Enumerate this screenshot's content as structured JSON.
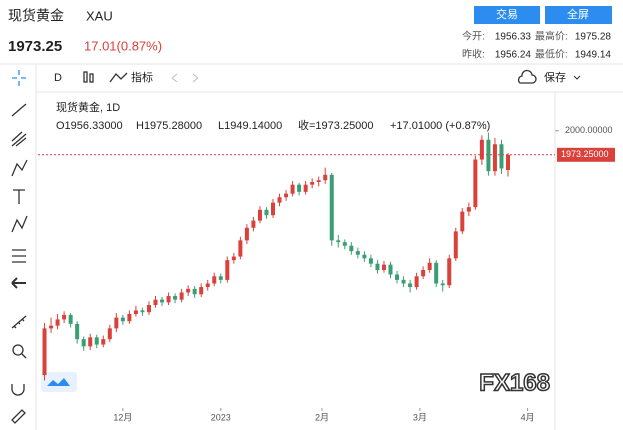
{
  "header": {
    "title": "现货黄金",
    "symbol": "XAU",
    "price": "1973.25",
    "change": "17.01(0.87%)",
    "buttons": [
      "交易",
      "全屏"
    ],
    "stats": [
      [
        "今开:",
        "1956.33",
        "最高价:",
        "1975.28"
      ],
      [
        "昨收:",
        "1956.24",
        "最低价:",
        "1949.14"
      ]
    ]
  },
  "toolbar": {
    "interval": "D",
    "indicators": "指标",
    "save": "保存"
  },
  "legend": {
    "name": "现货黄金, 1D",
    "open": "O1956.33000",
    "high": "H1975.28000",
    "low": "L1949.14000",
    "close": "收=1973.25000",
    "change": "+17.01000 (+0.87%)"
  },
  "watermark": "FX168",
  "chart_data": {
    "type": "candlestick",
    "up_color": "#d9413a",
    "down_color": "#3a9e74",
    "price_line_color": "#d9413a",
    "ylim": [
      1678,
      2012
    ],
    "yticks": [
      {
        "value": 2000,
        "label": "2000.00000"
      }
    ],
    "last_price": {
      "value": 1973.25,
      "label": "1973.25000"
    },
    "xlim": [
      -1,
      78.2
    ],
    "xticks": [
      {
        "value": 12,
        "label": "12月"
      },
      {
        "value": 27,
        "label": "2023"
      },
      {
        "value": 42.5,
        "label": "2月"
      },
      {
        "value": 57.5,
        "label": "3月"
      },
      {
        "value": 74,
        "label": "4月"
      }
    ],
    "ohlc": [
      [
        1728,
        1786,
        1722,
        1780
      ],
      [
        1780,
        1792,
        1775,
        1783
      ],
      [
        1783,
        1796,
        1779,
        1790
      ],
      [
        1790,
        1799,
        1786,
        1795
      ],
      [
        1795,
        1797,
        1781,
        1785
      ],
      [
        1785,
        1788,
        1763,
        1768
      ],
      [
        1768,
        1771,
        1755,
        1760
      ],
      [
        1760,
        1774,
        1756,
        1770
      ],
      [
        1770,
        1773,
        1758,
        1762
      ],
      [
        1762,
        1772,
        1759,
        1768
      ],
      [
        1768,
        1784,
        1765,
        1780
      ],
      [
        1780,
        1797,
        1776,
        1792
      ],
      [
        1792,
        1795,
        1784,
        1788
      ],
      [
        1788,
        1800,
        1785,
        1796
      ],
      [
        1796,
        1805,
        1793,
        1800
      ],
      [
        1800,
        1803,
        1794,
        1798
      ],
      [
        1798,
        1810,
        1795,
        1806
      ],
      [
        1806,
        1816,
        1803,
        1812
      ],
      [
        1812,
        1815,
        1805,
        1809
      ],
      [
        1809,
        1820,
        1806,
        1816
      ],
      [
        1816,
        1819,
        1808,
        1812
      ],
      [
        1812,
        1824,
        1809,
        1820
      ],
      [
        1820,
        1828,
        1816,
        1824
      ],
      [
        1824,
        1827,
        1814,
        1818
      ],
      [
        1818,
        1830,
        1815,
        1826
      ],
      [
        1826,
        1834,
        1822,
        1830
      ],
      [
        1830,
        1842,
        1827,
        1838
      ],
      [
        1838,
        1841,
        1830,
        1834
      ],
      [
        1834,
        1860,
        1831,
        1856
      ],
      [
        1856,
        1864,
        1852,
        1860
      ],
      [
        1860,
        1882,
        1857,
        1878
      ],
      [
        1878,
        1896,
        1874,
        1892
      ],
      [
        1892,
        1904,
        1888,
        1900
      ],
      [
        1900,
        1916,
        1897,
        1912
      ],
      [
        1912,
        1915,
        1902,
        1906
      ],
      [
        1906,
        1924,
        1903,
        1920
      ],
      [
        1920,
        1930,
        1916,
        1926
      ],
      [
        1926,
        1934,
        1922,
        1930
      ],
      [
        1930,
        1944,
        1927,
        1940
      ],
      [
        1940,
        1942,
        1928,
        1932
      ],
      [
        1932,
        1944,
        1929,
        1940
      ],
      [
        1940,
        1947,
        1936,
        1943
      ],
      [
        1943,
        1949,
        1938,
        1945
      ],
      [
        1945,
        1959,
        1941,
        1951
      ],
      [
        1951,
        1953,
        1872,
        1878
      ],
      [
        1878,
        1884,
        1870,
        1876
      ],
      [
        1876,
        1879,
        1868,
        1872
      ],
      [
        1872,
        1876,
        1862,
        1866
      ],
      [
        1866,
        1870,
        1858,
        1862
      ],
      [
        1862,
        1866,
        1854,
        1858
      ],
      [
        1858,
        1862,
        1848,
        1852
      ],
      [
        1852,
        1856,
        1841,
        1845
      ],
      [
        1845,
        1855,
        1842,
        1851
      ],
      [
        1851,
        1854,
        1836,
        1840
      ],
      [
        1840,
        1844,
        1830,
        1834
      ],
      [
        1834,
        1838,
        1826,
        1830
      ],
      [
        1830,
        1834,
        1820,
        1826
      ],
      [
        1826,
        1842,
        1823,
        1838
      ],
      [
        1838,
        1849,
        1835,
        1845
      ],
      [
        1845,
        1858,
        1842,
        1853
      ],
      [
        1853,
        1856,
        1826,
        1830
      ],
      [
        1830,
        1834,
        1821,
        1828
      ],
      [
        1828,
        1862,
        1825,
        1858
      ],
      [
        1858,
        1892,
        1855,
        1888
      ],
      [
        1888,
        1914,
        1885,
        1910
      ],
      [
        1910,
        1920,
        1905,
        1915
      ],
      [
        1915,
        1972,
        1912,
        1968
      ],
      [
        1968,
        1995,
        1962,
        1990
      ],
      [
        1990,
        1998,
        1950,
        1955
      ],
      [
        1955,
        1992,
        1950,
        1985
      ],
      [
        1985,
        1990,
        1952,
        1958
      ],
      [
        1956.33,
        1975.28,
        1949.14,
        1973.25
      ]
    ]
  }
}
